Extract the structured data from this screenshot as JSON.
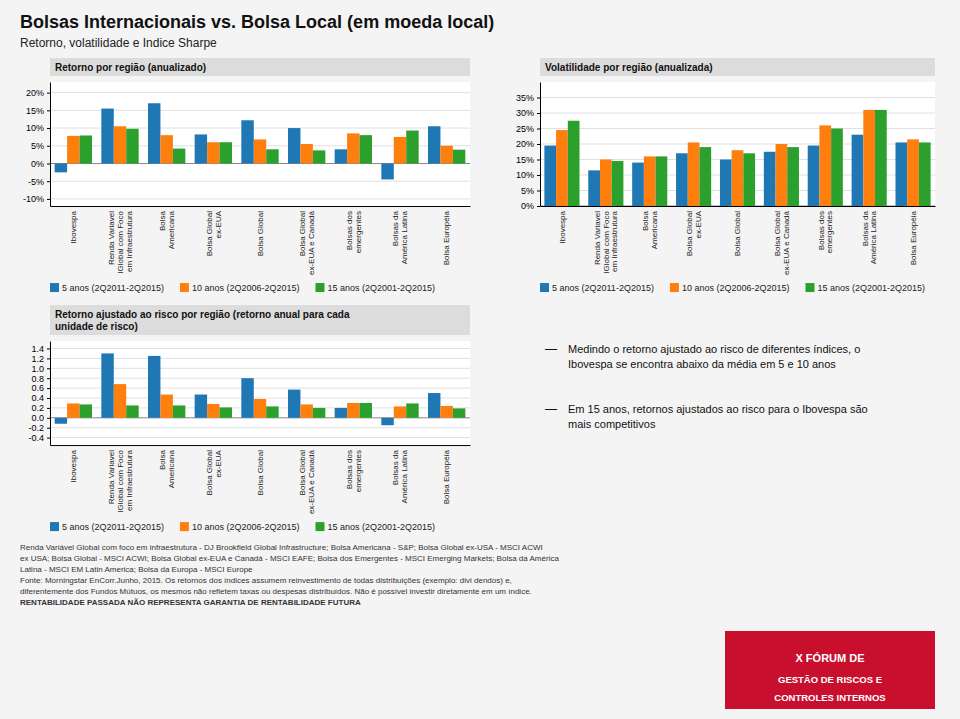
{
  "title": "Bolsas Internacionais vs. Bolsa Local (em moeda local)",
  "subtitle": "Retorno, volatilidade e Indice Sharpe",
  "chart_data": [
    {
      "type": "bar",
      "title": "Retorno por região (anualizado)",
      "categories": [
        "Ibovespa",
        "Renda Variavel\nIGlobal com Foco\nem Infraestrutura",
        "Bolsa\nAmericana",
        "Bolsa Global\nex-EUA",
        "Bolsa Global",
        "Bolsa Global\nex-EUA e Canadá",
        "Bolsas dos\nemergentes",
        "Bolsas da\nAmérica Latina",
        "Bolsa Européia"
      ],
      "series": [
        {
          "name": "5 anos (2Q2011-2Q2015)",
          "values": [
            -2.5,
            15.5,
            17.0,
            8.2,
            12.2,
            10.0,
            4.0,
            -4.5,
            10.5
          ]
        },
        {
          "name": "10 anos (2Q2006-2Q2015)",
          "values": [
            7.8,
            10.5,
            8.0,
            6.0,
            6.8,
            5.5,
            8.5,
            7.5,
            5.0
          ]
        },
        {
          "name": "15 anos (2Q2001-2Q2015)",
          "values": [
            7.9,
            9.8,
            4.2,
            6.0,
            4.0,
            3.7,
            8.0,
            9.3,
            3.9
          ]
        }
      ],
      "ylim": [
        -12,
        23
      ],
      "yticks": [
        {
          "value": -10,
          "label": "-10%"
        },
        {
          "value": -5,
          "label": "-5%"
        },
        {
          "value": 0,
          "label": "0%"
        },
        {
          "value": 5,
          "label": "5%"
        },
        {
          "value": 10,
          "label": "10%"
        },
        {
          "value": 15,
          "label": "15%"
        },
        {
          "value": 20,
          "label": "20%"
        }
      ],
      "grid": true,
      "legend": "bottom"
    },
    {
      "type": "bar",
      "title": "Volatilidade por região (anualizada)",
      "categories": [
        "Ibovespa",
        "Renda Variavel\nIGlobal com Foco\nem Infraestrutura",
        "Bolsa\nAmericana",
        "Bolsa Global\nex-EUA",
        "Bolsa Global",
        "Bolsa Global\nex-EUA e Canadá",
        "Bolsas dos\nemergentes",
        "Bolsas da\nAmérica Latina",
        "Bolsa Européia"
      ],
      "series": [
        {
          "name": "5 anos (2Q2011-2Q2015)",
          "values": [
            19.5,
            11.5,
            14.0,
            17.0,
            15.0,
            17.5,
            19.5,
            23.0,
            20.5
          ]
        },
        {
          "name": "10 anos (2Q2006-2Q2015)",
          "values": [
            24.5,
            15.0,
            16.0,
            20.5,
            18.0,
            20.0,
            26.0,
            31.0,
            21.5
          ]
        },
        {
          "name": "15 anos (2Q2001-2Q2015)",
          "values": [
            27.5,
            14.5,
            16.0,
            19.0,
            17.0,
            19.0,
            25.0,
            31.0,
            20.5
          ]
        }
      ],
      "ylim": [
        0,
        40
      ],
      "yticks": [
        {
          "value": 0,
          "label": "0%"
        },
        {
          "value": 5,
          "label": "5%"
        },
        {
          "value": 10,
          "label": "10%"
        },
        {
          "value": 15,
          "label": "15%"
        },
        {
          "value": 20,
          "label": "20%"
        },
        {
          "value": 25,
          "label": "25%"
        },
        {
          "value": 30,
          "label": "30%"
        },
        {
          "value": 35,
          "label": "35%"
        }
      ],
      "grid": true,
      "legend": "bottom"
    },
    {
      "type": "bar",
      "title": "Retorno ajustado ao risco por região (retorno anual para cada\nunidade de risco)",
      "categories": [
        "Ibovespa",
        "Renda Variavel\nIGlobal com Foco\nem Infraestrutura",
        "Bolsa\nAmericana",
        "Bolsa Global\nex-EUA",
        "Bolsa Global",
        "Bolsa Global\nex-EUA e Canadá",
        "Bolsas dos\nemergentes",
        "Bolsas da\nAmérica Latina",
        "Bolsa Européia"
      ],
      "series": [
        {
          "name": "5 anos (2Q2011-2Q2015)",
          "values": [
            -0.12,
            1.3,
            1.25,
            0.47,
            0.8,
            0.57,
            0.2,
            -0.15,
            0.5
          ]
        },
        {
          "name": "10 anos (2Q2006-2Q2015)",
          "values": [
            0.29,
            0.68,
            0.47,
            0.28,
            0.38,
            0.27,
            0.3,
            0.23,
            0.24
          ]
        },
        {
          "name": "15 anos (2Q2001-2Q2015)",
          "values": [
            0.27,
            0.25,
            0.25,
            0.21,
            0.23,
            0.2,
            0.3,
            0.29,
            0.19
          ]
        }
      ],
      "ylim": [
        -0.55,
        1.55
      ],
      "yticks": [
        -0.4,
        -0.2,
        {
          "value": 0,
          "label": "0.0"
        },
        0.2,
        0.4,
        0.6,
        0.8,
        {
          "value": 1,
          "label": "1.0"
        },
        1.2,
        1.4
      ],
      "grid": true,
      "legend": "bottom"
    }
  ],
  "bullet_symbol": "—",
  "notes": [
    "Medindo o retorno ajustado ao risco de diferentes índices, o\nIbovespa se encontra abaixo da média em 5 e 10 anos",
    "Em 15 anos, retornos ajustados ao risco para o Ibovespa são\nmais competitivos"
  ],
  "footer": [
    "Renda Variável Global com foco em infraestrutura - DJ Brookfield Global Infrastructure; Bolsa Americana - S&P; Bolsa Global ex-USA - MSCI ACWI",
    "ex USA; Bolsa Global - MSCI ACWI; Bolsa Global ex-EUA e Canadá - MSCI EAFE; Bolsa dos Emergentes - MSCI Emerging Markets; Bolsa da América",
    "Latina - MSCI EM Latin America; Bolsa da Europa - MSCI Europe",
    "Fonte: Morningstar EnCorr.Junho, 2015. Os retornos dos índices assumem reinvestimento de todas distribuições (exemplo: divi dendos) e,",
    "diferentemente dos Fundos Mútuos, os mesmos não refletem taxas ou despesas distribuídos. Não é possível investir diretamente em um índice.",
    "RENTABILIDADE PASSADA NÃO REPRESENTA GARANTIA DE RENTABILIDADE FUTURA"
  ],
  "logo": [
    "X FÓRUM DE",
    "GESTÃO DE RISCOS E",
    "CONTROLES INTERNOS"
  ]
}
